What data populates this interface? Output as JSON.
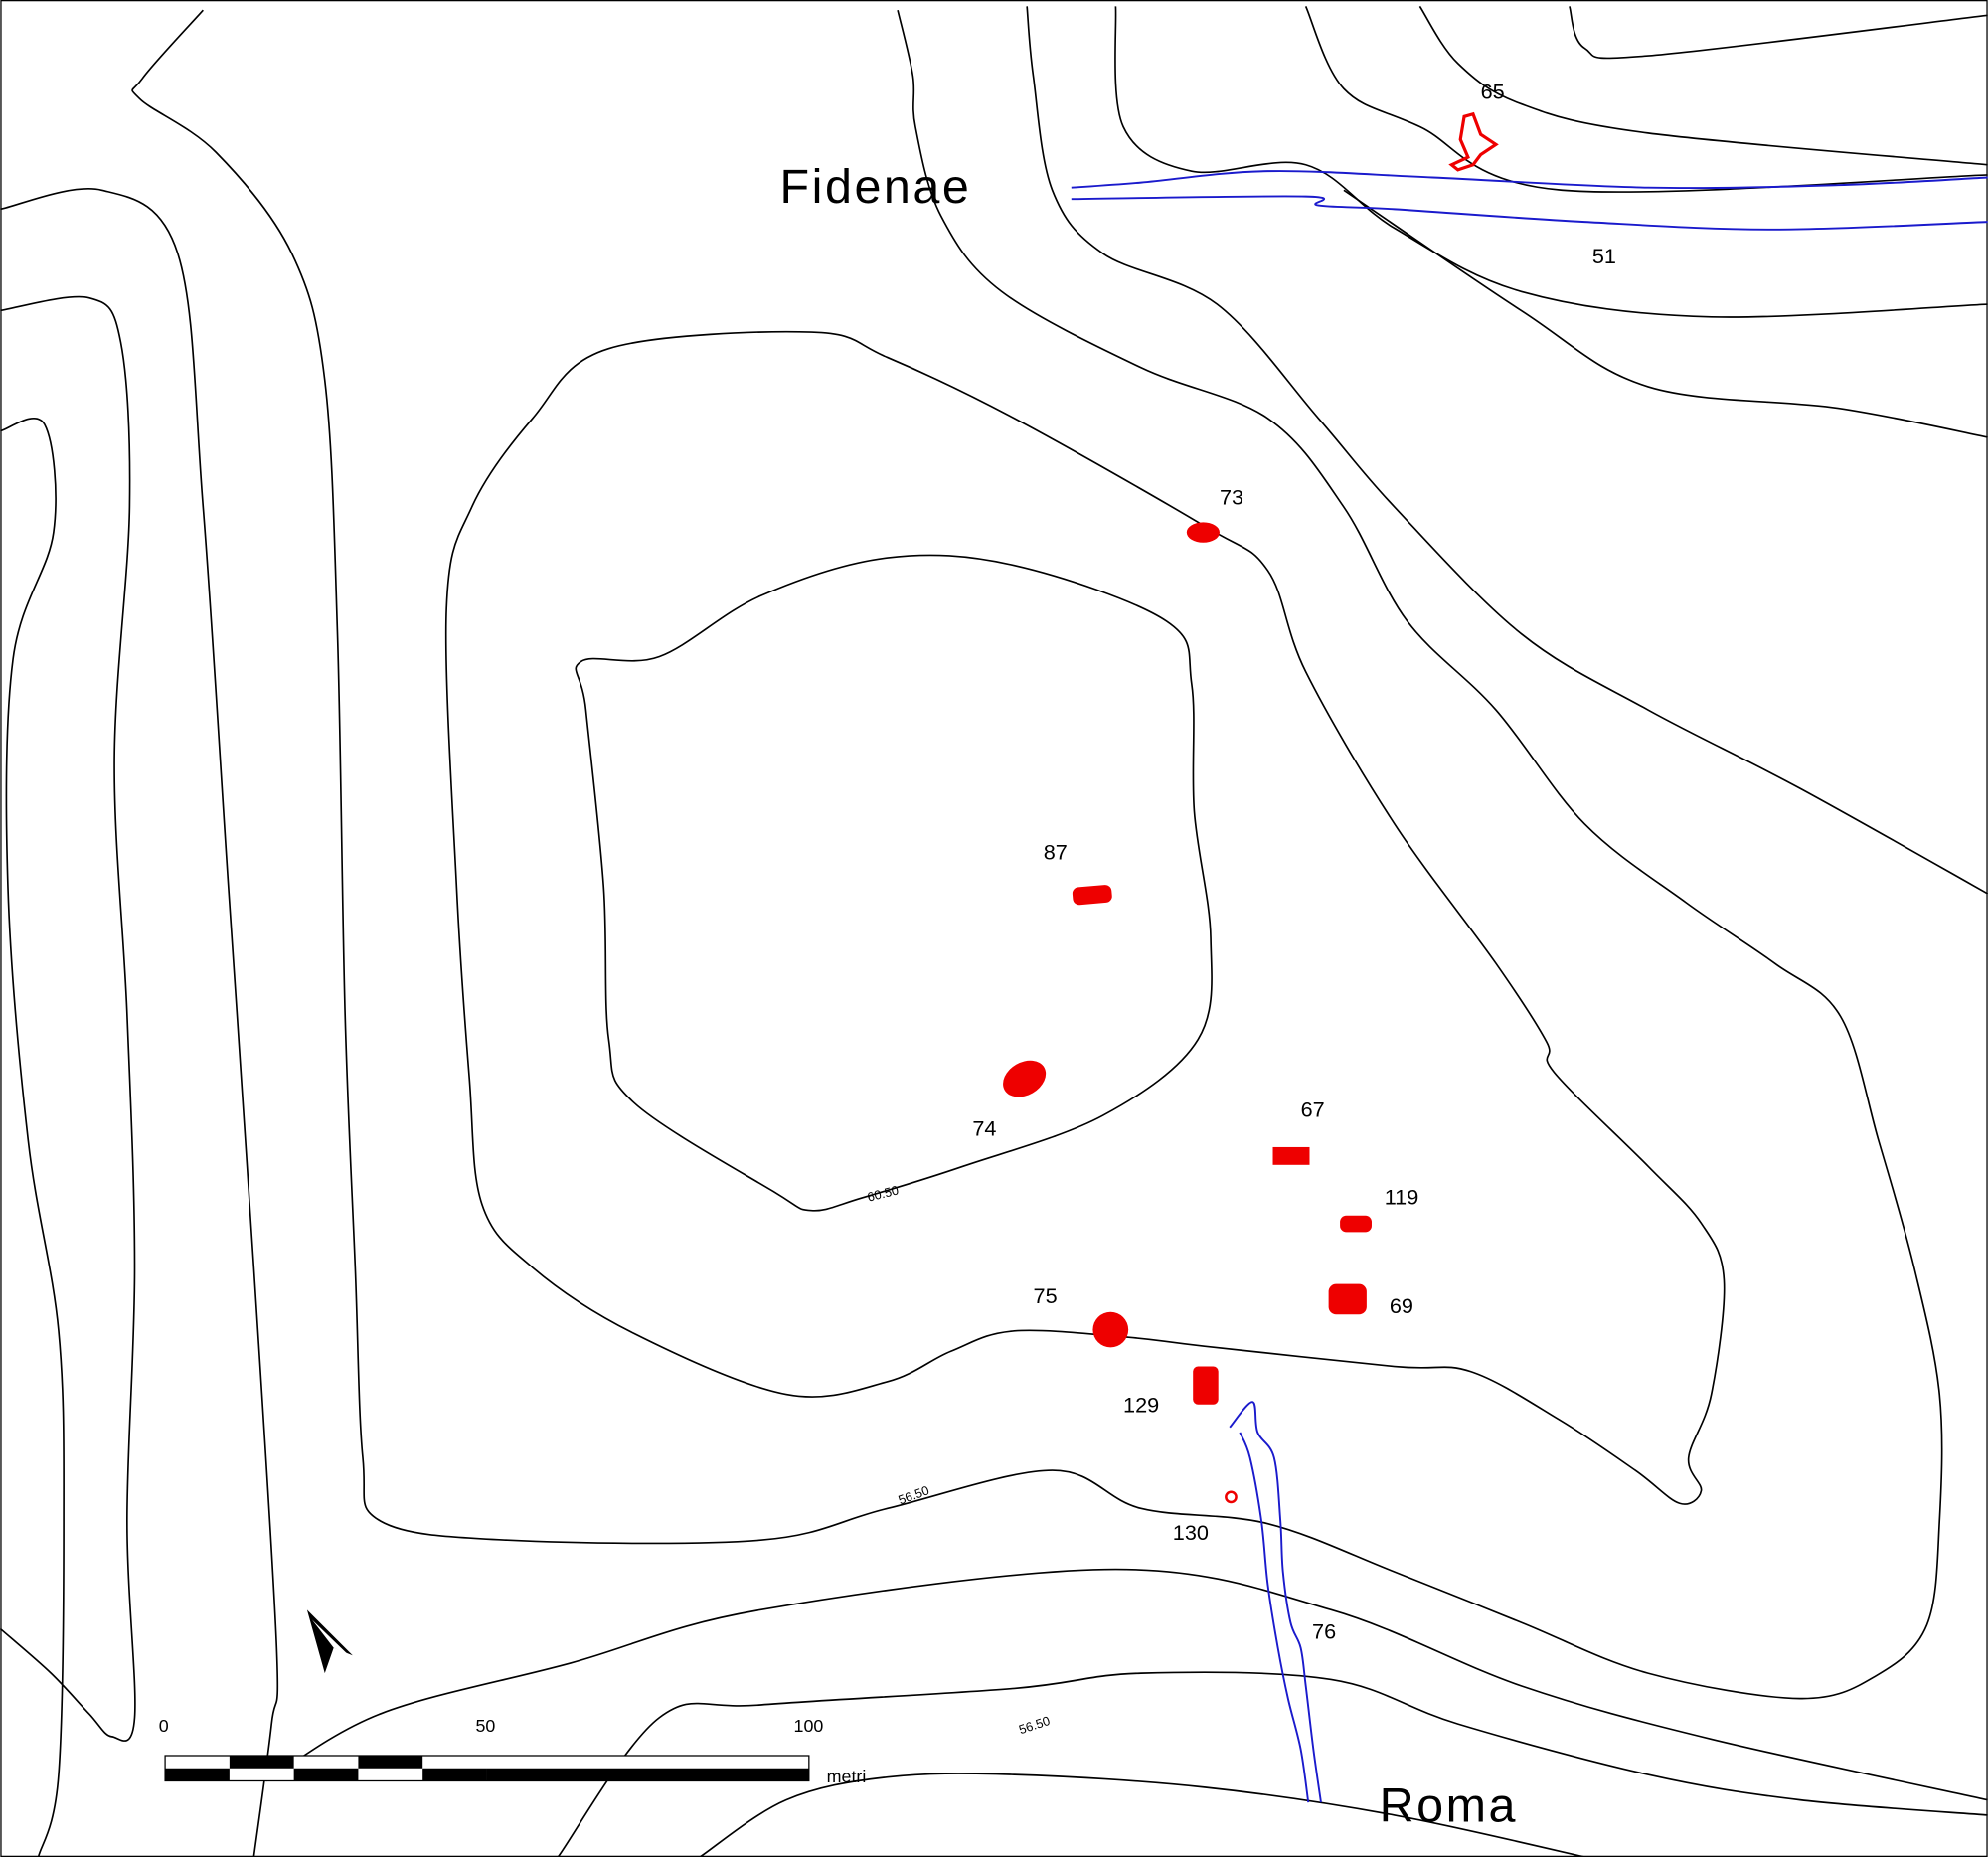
{
  "places": [
    {
      "label": "Fidenae"
    },
    {
      "label": "Roma"
    }
  ],
  "sites": [
    {
      "label": "65"
    },
    {
      "label": "51"
    },
    {
      "label": "73"
    },
    {
      "label": "87"
    },
    {
      "label": "74"
    },
    {
      "label": "67"
    },
    {
      "label": "119"
    },
    {
      "label": "69"
    },
    {
      "label": "75"
    },
    {
      "label": "129"
    },
    {
      "label": "130"
    },
    {
      "label": "76"
    }
  ],
  "contour_labels": [
    "60.50",
    "56.50",
    "56.50"
  ],
  "scale_bar": {
    "ticks": [
      "0",
      "50",
      "100"
    ],
    "unit": "metri"
  }
}
